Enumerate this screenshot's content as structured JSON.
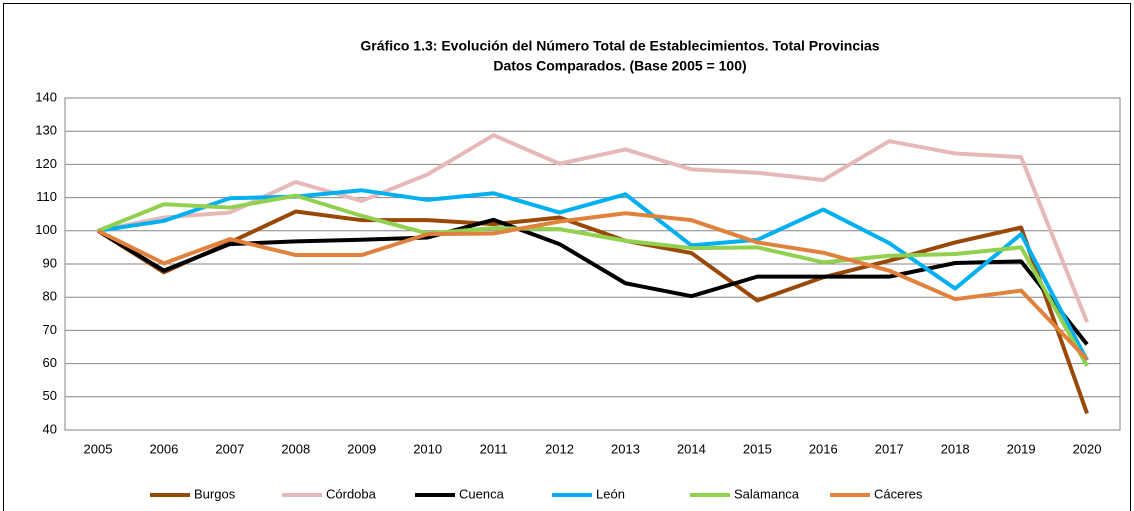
{
  "chart_data": {
    "type": "line",
    "title": [
      "Gráfico 1.3: Evolución del Número Total de Establecimientos. Total Provincias",
      "Datos Comparados. (Base  2005 = 100)"
    ],
    "categories": [
      "2005",
      "2006",
      "2007",
      "2008",
      "2009",
      "2010",
      "2011",
      "2012",
      "2013",
      "2014",
      "2015",
      "2016",
      "2017",
      "2018",
      "2019",
      "2020"
    ],
    "ylim": [
      40,
      140
    ],
    "yticks": [
      40,
      50,
      60,
      70,
      80,
      90,
      100,
      110,
      120,
      130,
      140
    ],
    "grid": true,
    "legend": "bottom",
    "series": [
      {
        "name": "Burgos",
        "color": "#984807",
        "values": [
          100,
          87.5,
          96.5,
          105.8,
          103.2,
          103.2,
          102,
          104,
          97,
          93.3,
          79,
          86,
          91,
          96.5,
          101,
          45
        ]
      },
      {
        "name": "Córdoba",
        "color": "#e6b9b8",
        "values": [
          100,
          104,
          105.5,
          114.7,
          109,
          117,
          128.8,
          120.2,
          124.5,
          118.5,
          117.5,
          115.3,
          127,
          123.3,
          122.2,
          72.5
        ]
      },
      {
        "name": "Cuenca",
        "color": "#000000",
        "values": [
          100,
          88,
          96,
          96.8,
          97.3,
          98,
          103.3,
          96,
          84.2,
          80.3,
          86.2,
          86.2,
          86.2,
          90.3,
          90.8,
          65.8
        ]
      },
      {
        "name": "León",
        "color": "#00b0f0",
        "values": [
          100,
          103,
          109.8,
          110.3,
          112.2,
          109.3,
          111.3,
          105.5,
          111,
          95.6,
          97.3,
          106.4,
          96.3,
          82.6,
          99,
          61
        ]
      },
      {
        "name": "Salamanca",
        "color": "#92d050",
        "values": [
          100,
          108,
          107,
          110.6,
          104.5,
          99.2,
          100.8,
          100.5,
          97,
          94.8,
          95,
          90.5,
          92.5,
          93,
          95,
          59.3
        ]
      },
      {
        "name": "Cáceres",
        "color": "#e0823d",
        "values": [
          100,
          90.2,
          97.5,
          92.7,
          92.7,
          99,
          99.2,
          102.8,
          105.3,
          103.2,
          96.5,
          93.4,
          88,
          79.4,
          82,
          61.3
        ]
      }
    ]
  }
}
